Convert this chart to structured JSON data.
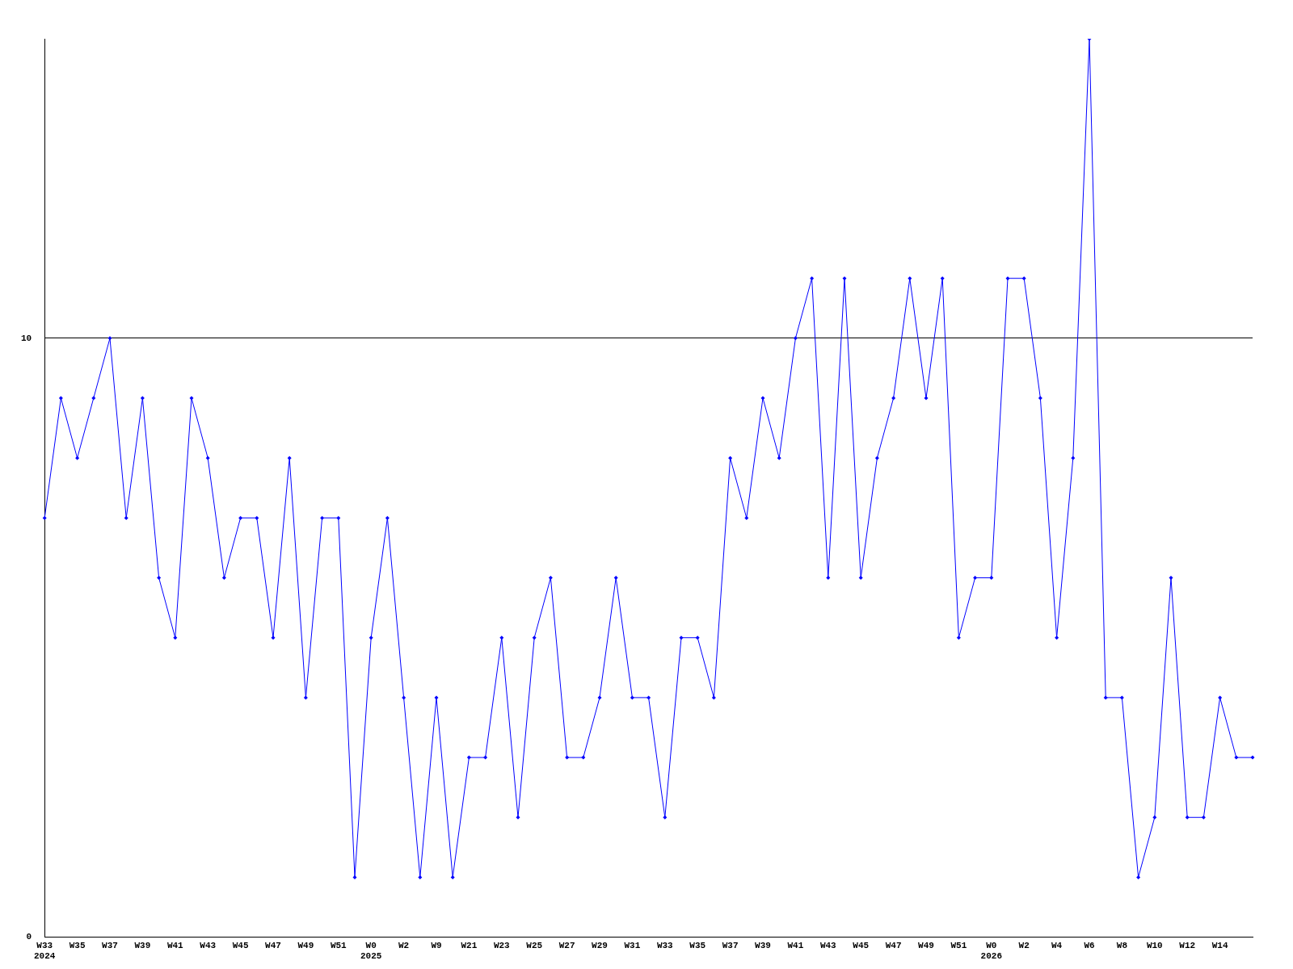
{
  "chart_data": {
    "type": "line",
    "categories": [
      "W33\n2024",
      null,
      "W35",
      null,
      "W37",
      null,
      "W39",
      null,
      "W41",
      null,
      "W43",
      null,
      "W45",
      null,
      "W47",
      null,
      "W49",
      null,
      "W51",
      null,
      "W0\n2025",
      null,
      "W2",
      null,
      "W9",
      null,
      "W21",
      null,
      "W23",
      null,
      "W25",
      null,
      "W27",
      null,
      "W29",
      null,
      "W31",
      null,
      "W33",
      null,
      "W35",
      null,
      "W37",
      null,
      "W39",
      null,
      "W41",
      null,
      "W43",
      null,
      "W45",
      null,
      "W47",
      null,
      "W49",
      null,
      "W51",
      null,
      "W0\n2026",
      null,
      "W2",
      null,
      "W4",
      null,
      "W6",
      null,
      "W8",
      null,
      "W10",
      null,
      "W12",
      null,
      "W14",
      null,
      null
    ],
    "series": [
      {
        "color": "#0000ff",
        "values": [
          7,
          9,
          8,
          9,
          10,
          7,
          9,
          6,
          5,
          9,
          8,
          6,
          7,
          7,
          5,
          8,
          4,
          7,
          7,
          1,
          5,
          7,
          4,
          1,
          4,
          1,
          3,
          3,
          5,
          2,
          5,
          6,
          3,
          3,
          4,
          6,
          4,
          4,
          2,
          5,
          5,
          4,
          8,
          7,
          9,
          8,
          10,
          11,
          6,
          11,
          6,
          8,
          9,
          11,
          9,
          11,
          5,
          6,
          6,
          11,
          11,
          9,
          5,
          8,
          15,
          4,
          4,
          1,
          2,
          6,
          2,
          2,
          4,
          3,
          3
        ]
      }
    ],
    "ylim": [
      0,
      15
    ],
    "yticks": [
      0,
      10
    ],
    "grid": "y",
    "legend": false,
    "marker": "diamond",
    "line_style": "solid"
  }
}
